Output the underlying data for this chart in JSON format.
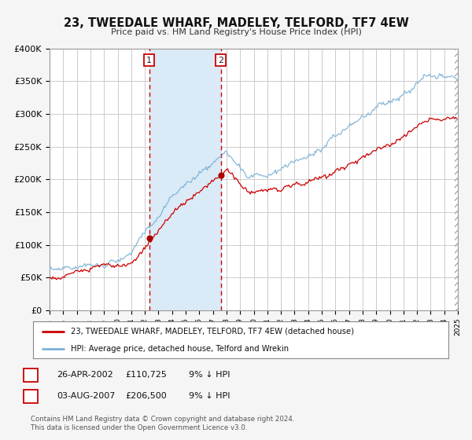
{
  "title": "23, TWEEDALE WHARF, MADELEY, TELFORD, TF7 4EW",
  "subtitle": "Price paid vs. HM Land Registry's House Price Index (HPI)",
  "ylim": [
    0,
    400000
  ],
  "yticks": [
    0,
    50000,
    100000,
    150000,
    200000,
    250000,
    300000,
    350000,
    400000
  ],
  "ytick_labels": [
    "£0",
    "£50K",
    "£100K",
    "£150K",
    "£200K",
    "£250K",
    "£300K",
    "£350K",
    "£400K"
  ],
  "xlim": [
    1995,
    2025
  ],
  "background_color": "#f5f5f5",
  "plot_bg_color": "#ffffff",
  "grid_color": "#cccccc",
  "sale1_date_num": 2002.32,
  "sale1_price": 110725,
  "sale1_label": "1",
  "sale2_date_num": 2007.59,
  "sale2_price": 206500,
  "sale2_label": "2",
  "shade_start": 2002.32,
  "shade_end": 2007.59,
  "shade_color": "#daeaf7",
  "vline_color": "#cc0000",
  "dot_color": "#aa0000",
  "hpi_line_color": "#7ab0d4",
  "sale_line_color": "#cc0000",
  "legend1_label": "23, TWEEDALE WHARF, MADELEY, TELFORD, TF7 4EW (detached house)",
  "legend2_label": "HPI: Average price, detached house, Telford and Wrekin",
  "footer1": "Contains HM Land Registry data © Crown copyright and database right 2024.",
  "footer2": "This data is licensed under the Open Government Licence v3.0.",
  "table_row1": [
    "1",
    "26-APR-2002",
    "£110,725",
    "9% ↓ HPI"
  ],
  "table_row2": [
    "2",
    "03-AUG-2007",
    "£206,500",
    "9% ↓ HPI"
  ]
}
